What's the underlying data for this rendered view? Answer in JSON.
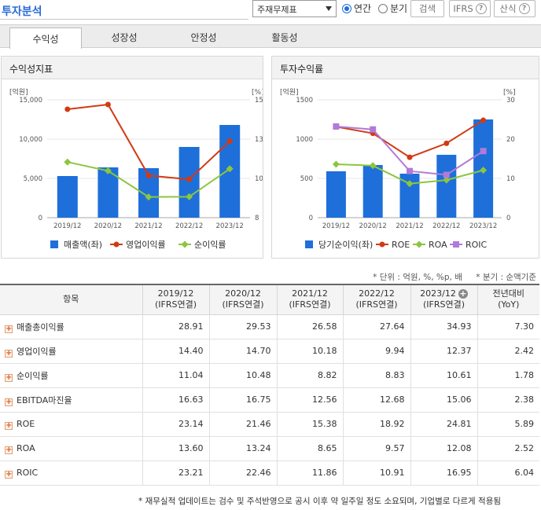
{
  "header": {
    "title": "투자분석",
    "select_value": "주재무제표",
    "period_options": [
      "연간",
      "분기"
    ],
    "period_selected": "연간",
    "search_label": "검색",
    "ifrs_label": "IFRS",
    "formula_label": "산식",
    "help_glyph": "?"
  },
  "tabs": [
    "수익성",
    "성장성",
    "안정성",
    "활동성"
  ],
  "active_tab": "수익성",
  "colors": {
    "bar": "#1e6fd9",
    "line_red": "#d13b14",
    "line_green": "#8cc63f",
    "line_purple": "#b17ad9",
    "title_blue": "#2a6cd6"
  },
  "left_chart": {
    "panel_title": "수익성지표",
    "left_unit": "[억원]",
    "right_unit": "[%]",
    "left_ticks": [
      "15,000",
      "10,000",
      "5,000",
      "0"
    ],
    "right_ticks": [
      "15",
      "13",
      "10",
      "8"
    ],
    "legend": [
      "매출액(좌)",
      "영업이익률",
      "순이익률"
    ]
  },
  "right_chart": {
    "panel_title": "투자수익률",
    "left_unit": "[억원]",
    "right_unit": "[%]",
    "left_ticks": [
      "1500",
      "1000",
      "500",
      "0"
    ],
    "right_ticks": [
      "30",
      "20",
      "10",
      "0"
    ],
    "legend": [
      "당기순이익(좌)",
      "ROE",
      "ROA",
      "ROIC"
    ]
  },
  "chart_data": [
    {
      "type": "bar",
      "title": "수익성지표",
      "categories": [
        "2019/12",
        "2020/12",
        "2021/12",
        "2022/12",
        "2023/12"
      ],
      "ylim_left": [
        0,
        15000
      ],
      "ylim_right": [
        7.5,
        15
      ],
      "series": [
        {
          "name": "매출액(좌)",
          "kind": "bar",
          "axis": "left",
          "values": [
            5300,
            6400,
            6300,
            9000,
            11800
          ]
        },
        {
          "name": "영업이익률",
          "kind": "line",
          "axis": "right",
          "values": [
            14.4,
            14.7,
            10.18,
            9.94,
            12.37
          ]
        },
        {
          "name": "순이익률",
          "kind": "line",
          "axis": "right",
          "values": [
            11.04,
            10.48,
            8.82,
            8.83,
            10.61
          ]
        }
      ]
    },
    {
      "type": "bar",
      "title": "투자수익률",
      "categories": [
        "2019/12",
        "2020/12",
        "2021/12",
        "2022/12",
        "2023/12"
      ],
      "ylim_left": [
        0,
        1500
      ],
      "ylim_right": [
        0,
        30
      ],
      "series": [
        {
          "name": "당기순이익(좌)",
          "kind": "bar",
          "axis": "left",
          "values": [
            590,
            670,
            560,
            800,
            1250
          ]
        },
        {
          "name": "ROE",
          "kind": "line",
          "axis": "right",
          "values": [
            23.14,
            21.46,
            15.38,
            18.92,
            24.81
          ]
        },
        {
          "name": "ROA",
          "kind": "line",
          "axis": "right",
          "values": [
            13.6,
            13.24,
            8.65,
            9.57,
            12.08
          ]
        },
        {
          "name": "ROIC",
          "kind": "line",
          "axis": "right",
          "values": [
            23.21,
            22.46,
            11.86,
            10.91,
            16.95
          ]
        }
      ]
    }
  ],
  "table": {
    "unit_note": "* 단위 : 억원, %, %p, 배",
    "quarter_note": "* 분기 : 순액기준",
    "headers": [
      {
        "top": "항목",
        "bottom": ""
      },
      {
        "top": "2019/12",
        "bottom": "(IFRS연결)"
      },
      {
        "top": "2020/12",
        "bottom": "(IFRS연결)"
      },
      {
        "top": "2021/12",
        "bottom": "(IFRS연결)"
      },
      {
        "top": "2022/12",
        "bottom": "(IFRS연결)"
      },
      {
        "top": "2023/12",
        "bottom": "(IFRS연결)"
      },
      {
        "top": "전년대비",
        "bottom": "(YoY)"
      }
    ],
    "rows": [
      {
        "name": "매출총이익률",
        "values": [
          "28.91",
          "29.53",
          "26.58",
          "27.64",
          "34.93",
          "7.30"
        ]
      },
      {
        "name": "영업이익률",
        "values": [
          "14.40",
          "14.70",
          "10.18",
          "9.94",
          "12.37",
          "2.42"
        ]
      },
      {
        "name": "순이익률",
        "values": [
          "11.04",
          "10.48",
          "8.82",
          "8.83",
          "10.61",
          "1.78"
        ]
      },
      {
        "name": "EBITDA마진율",
        "values": [
          "16.63",
          "16.75",
          "12.56",
          "12.68",
          "15.06",
          "2.38"
        ]
      },
      {
        "name": "ROE",
        "values": [
          "23.14",
          "21.46",
          "15.38",
          "18.92",
          "24.81",
          "5.89"
        ]
      },
      {
        "name": "ROA",
        "values": [
          "13.60",
          "13.24",
          "8.65",
          "9.57",
          "12.08",
          "2.52"
        ]
      },
      {
        "name": "ROIC",
        "values": [
          "23.21",
          "22.46",
          "11.86",
          "10.91",
          "16.95",
          "6.04"
        ]
      }
    ]
  },
  "footnote": "* 재무실적 업데이트는 검수 및 주석반영으로 공시 이후 약 일주일 정도 소요되며, 기업별로 다르게 적용됨"
}
